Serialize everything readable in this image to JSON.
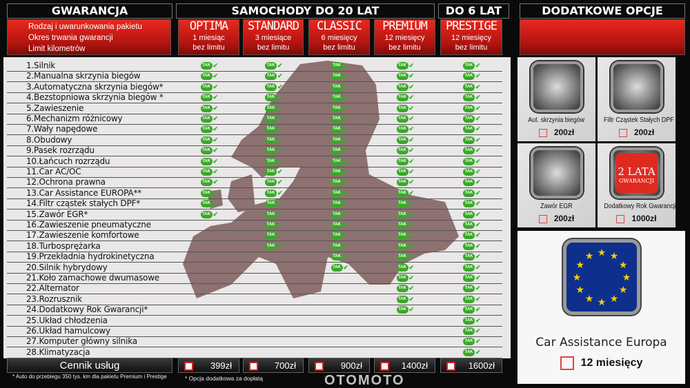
{
  "left_header": {
    "guarantee": "GWARANCJA",
    "cars20": "SAMOCHODY DO 20 LAT",
    "cars6": "DO 6 LAT"
  },
  "legend": [
    "Rodzaj i uwarunkowania pakietu",
    "Okres trwania gwarancji",
    "Limit kilometrów"
  ],
  "packages": [
    {
      "name": "OPTIMA",
      "period": "1 miesiąc",
      "limit": "bez limitu",
      "price": "399zł",
      "covered_rows": 15
    },
    {
      "name": "STANDARD",
      "period": "3 miesiące",
      "limit": "bez limitu",
      "price": "700zł",
      "covered_rows": 18
    },
    {
      "name": "CLASSIC",
      "period": "6 miesięcy",
      "limit": "bez limitu",
      "price": "900zł",
      "covered_rows": 20
    },
    {
      "name": "PREMIUM",
      "period": "12 miesięcy",
      "limit": "bez limitu",
      "price": "1400zł",
      "covered_rows": 24
    },
    {
      "name": "PRESTIGE",
      "period": "12 miesięcy",
      "limit": "bez limitu",
      "price": "1600zł",
      "covered_rows": 28
    }
  ],
  "tak_label": "TAK",
  "rows": [
    "1.Silnik",
    "2.Manualna skrzynia biegów",
    "3.Automatyczna skrzynia biegów*",
    "4.Bezstopniowa skrzynia biegów *",
    "5.Zawieszenie",
    "6.Mechanizm różnicowy",
    "7.Wały napędowe",
    "8.Obudowy",
    "9.Pasek rozrządu",
    "10.Łańcuch rozrządu",
    "11.Car AC/OC",
    "12.Ochrona prawna",
    "13.Car Assistance EUROPA**",
    "14.Filtr cząstek stałych DPF*",
    "15.Zawór EGR*",
    "16.Zawieszenie pneumatyczne",
    "17.Zawieszenie komfortowe",
    "18.Turbosprężarka",
    "19.Przekładnia hydrokinetyczna",
    "20.Silnik hybrydowy",
    "21.Koło zamachowe dwumasowe",
    "22.Alternator",
    "23.Rozrusznik",
    "24.Dodatkowy Rok Gwarancji*",
    "25.Układ chłodzenia",
    "26.Układ hamulcowy",
    "27.Komputer główny silnika",
    "28.Klimatyzacja"
  ],
  "price_label": "Cennik usług",
  "footnote_left": "* Auto do przebiegu 350 tys. km dla pakietu Premium i Prestige",
  "footnote_mid": "* Opcja dodatkowa za dopłatą",
  "watermark": "OTOMOTO",
  "options": {
    "title": "DODATKOWE OPCJE",
    "items": [
      {
        "label": "Aut. skrzynia biegów",
        "price": "200zł",
        "icon": "gear-shifter-icon"
      },
      {
        "label": "Filtr Cząstek Stałych DPF",
        "price": "200zł",
        "icon": "dpf-filter-icon"
      },
      {
        "label": "Zawór EGR",
        "price": "200zł",
        "icon": "egr-valve-icon"
      },
      {
        "label": "Dodatkowy Rok Gwarancji",
        "price": "1000zł",
        "icon": "two-years-badge-icon",
        "badge_line1": "2 LATA",
        "badge_line2": "GWARANCJI"
      }
    ],
    "assistance": {
      "label": "Car Assistance Europa",
      "period": "12 miesięcy",
      "icon": "eu-flag-icon"
    }
  },
  "colors": {
    "accent_red": "#d42016",
    "check_green": "#3aa828",
    "map": "#8e7171"
  }
}
